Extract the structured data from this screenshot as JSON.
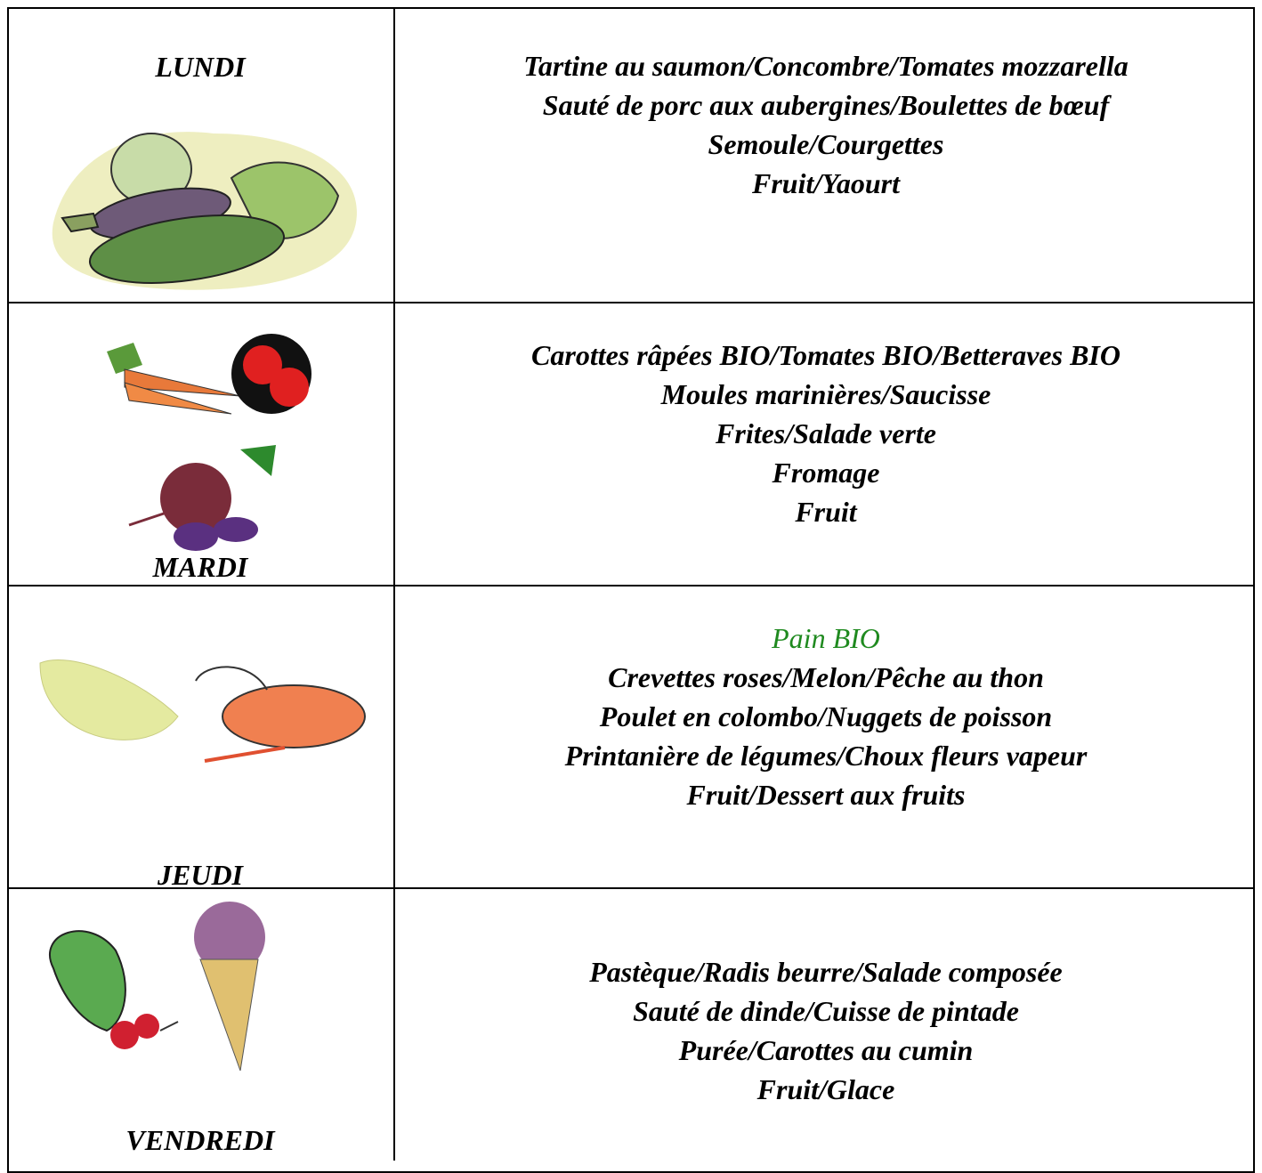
{
  "table": {
    "rows": [
      {
        "day": "LUNDI",
        "lines": [
          "Tartine au saumon/Concombre/Tomates mozzarella",
          "Sauté de porc aux aubergines/Boulettes de bœuf",
          "Semoule/Courgettes",
          "Fruit/Yaourt"
        ]
      },
      {
        "day": "MARDI",
        "lines": [
          "Carottes râpées BIO/Tomates BIO/Betteraves BIO",
          "Moules marinières/Saucisse",
          "Frites/Salade verte",
          "Fromage",
          "Fruit"
        ]
      },
      {
        "day": "JEUDI",
        "lines": [
          "Pain BIO",
          "Crevettes roses/Melon/Pêche au thon",
          "Poulet en colombo/Nuggets de poisson",
          "Printanière de légumes/Choux fleurs vapeur",
          "Fruit/Dessert aux fruits"
        ]
      },
      {
        "day": "VENDREDI",
        "lines": [
          "Pastèque/Radis beurre/Salade composée",
          "Sauté de dinde/Cuisse de pintade",
          "Purée/Carottes au cumin",
          "Fruit/Glace"
        ]
      }
    ]
  }
}
